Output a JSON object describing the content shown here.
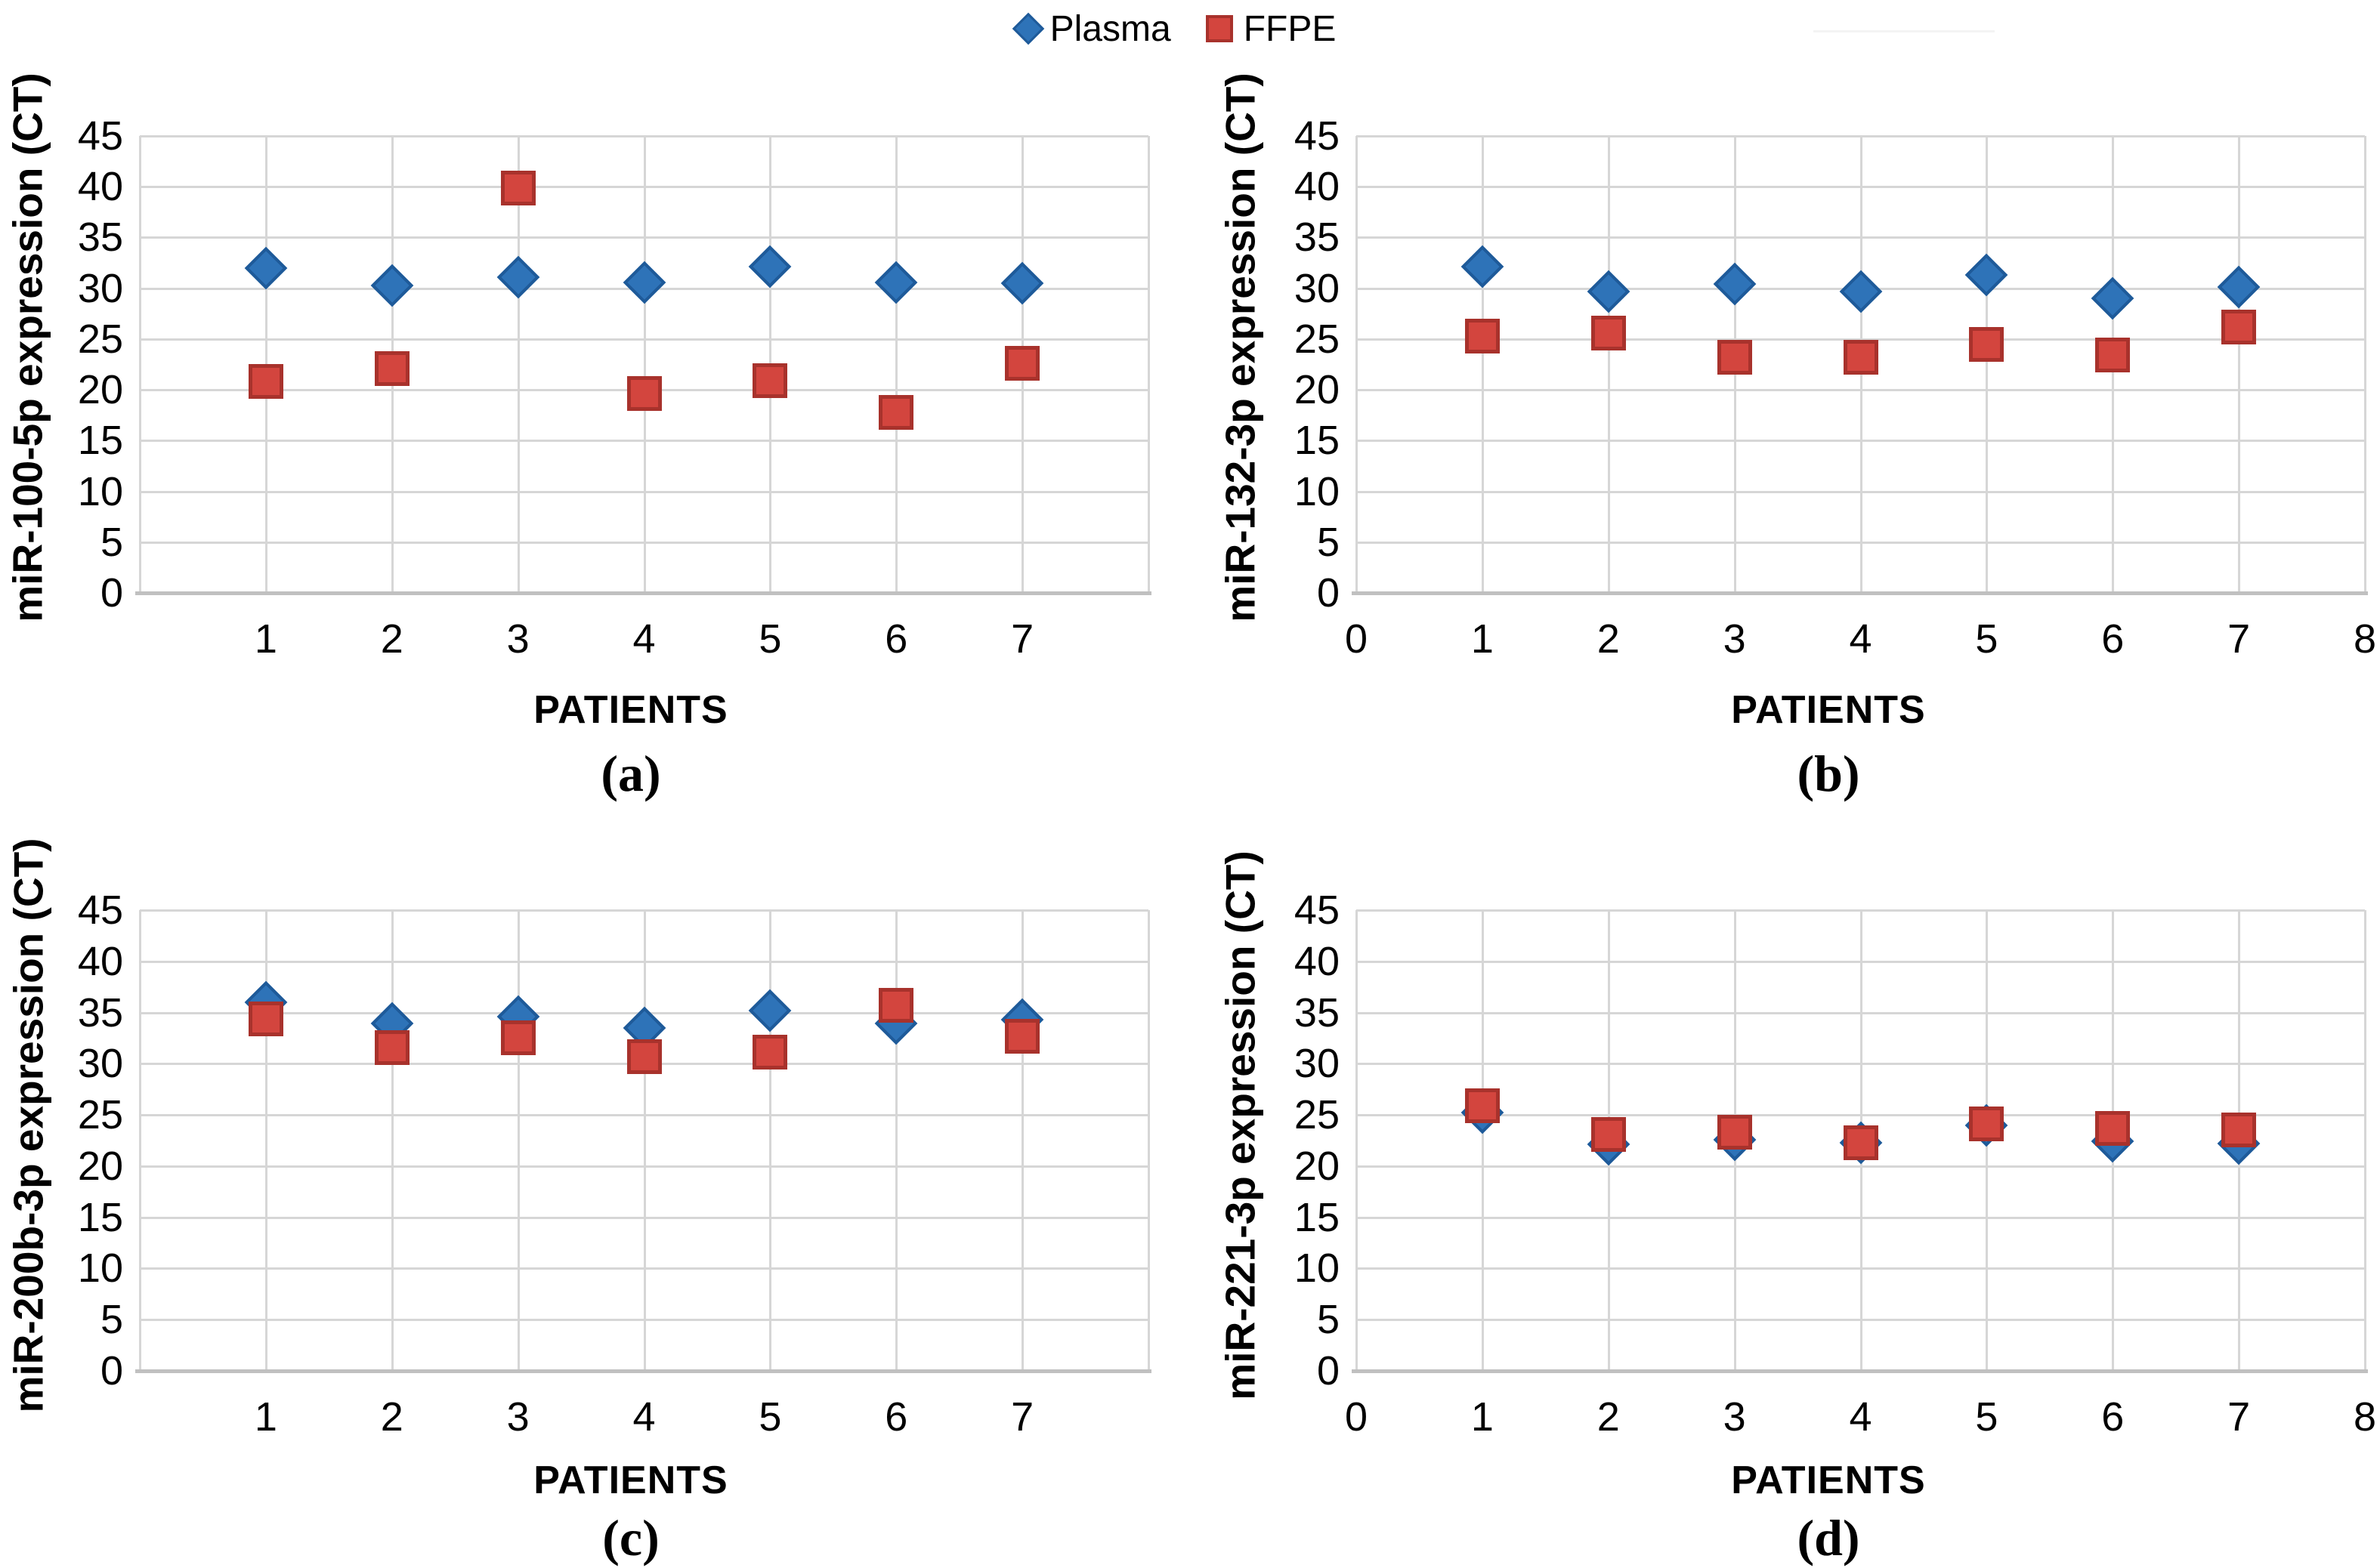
{
  "figure": {
    "background": "#ffffff",
    "legend": {
      "items": [
        {
          "label": "Plasma",
          "marker": "diamond-icon",
          "fill": "#2E73B8",
          "border": "#1E5A99"
        },
        {
          "label": "FFPE",
          "marker": "square-icon",
          "fill": "#D3453E",
          "border": "#A8322C"
        }
      ]
    },
    "axis_style": {
      "gridline_color": "#D6D6D6",
      "axis_line_color": "#C0C0C0",
      "text_color": "#000000"
    }
  },
  "chart_data": [
    {
      "type": "scatter",
      "panel_id": "a",
      "caption": "(a)",
      "ylabel": "miR-100-5p expression (CT)",
      "xlabel": "PATIENTS",
      "ylim": [
        0,
        45
      ],
      "xlim": [
        0,
        8
      ],
      "grid": true,
      "legend_position": "top-center-shared",
      "y_tick_labels": [
        "45",
        "40",
        "35",
        "30",
        "25",
        "20",
        "15",
        "10",
        "5",
        "0"
      ],
      "x_tick_positions": [
        1,
        2,
        3,
        4,
        5,
        6,
        7
      ],
      "x_tick_labels": [
        "1",
        "2",
        "3",
        "4",
        "5",
        "6",
        "7"
      ],
      "x": [
        1,
        2,
        3,
        4,
        5,
        6,
        7
      ],
      "series": [
        {
          "name": "Plasma",
          "marker": "diamond",
          "fill": "#2E73B8",
          "border": "#1E5A99",
          "values": [
            32.0,
            30.3,
            31.1,
            30.6,
            32.1,
            30.6,
            30.5
          ]
        },
        {
          "name": "FFPE",
          "marker": "square",
          "fill": "#D3453E",
          "border": "#A8322C",
          "values": [
            20.8,
            22.1,
            39.9,
            19.6,
            20.9,
            17.8,
            22.6
          ]
        }
      ]
    },
    {
      "type": "scatter",
      "panel_id": "b",
      "caption": "(b)",
      "ylabel": "miR-132-3p expression (CT)",
      "xlabel": "PATIENTS",
      "ylim": [
        0,
        45
      ],
      "xlim": [
        0,
        8
      ],
      "grid": true,
      "legend_position": "top-center-shared",
      "y_tick_labels": [
        "45",
        "40",
        "35",
        "30",
        "25",
        "20",
        "15",
        "10",
        "5",
        "0"
      ],
      "x_tick_positions": [
        0,
        1,
        2,
        3,
        4,
        5,
        6,
        7,
        8
      ],
      "x_tick_labels": [
        "0",
        "1",
        "2",
        "3",
        "4",
        "5",
        "6",
        "7",
        "8"
      ],
      "x": [
        1,
        2,
        3,
        4,
        5,
        6,
        7
      ],
      "series": [
        {
          "name": "Plasma",
          "marker": "diamond",
          "fill": "#2E73B8",
          "border": "#1E5A99",
          "values": [
            32.1,
            29.7,
            30.4,
            29.7,
            31.3,
            29.0,
            30.1
          ]
        },
        {
          "name": "FFPE",
          "marker": "square",
          "fill": "#D3453E",
          "border": "#A8322C",
          "values": [
            25.3,
            25.6,
            23.2,
            23.2,
            24.5,
            23.4,
            26.2
          ]
        }
      ]
    },
    {
      "type": "scatter",
      "panel_id": "c",
      "caption": "(c)",
      "ylabel": "miR-200b-3p expression (CT)",
      "xlabel": "PATIENTS",
      "ylim": [
        0,
        45
      ],
      "xlim": [
        0,
        8
      ],
      "grid": true,
      "legend_position": "top-center-shared",
      "y_tick_labels": [
        "45",
        "40",
        "35",
        "30",
        "25",
        "20",
        "15",
        "10",
        "5",
        "0"
      ],
      "x_tick_positions": [
        1,
        2,
        3,
        4,
        5,
        6,
        7
      ],
      "x_tick_labels": [
        "1",
        "2",
        "3",
        "4",
        "5",
        "6",
        "7"
      ],
      "x": [
        1,
        2,
        3,
        4,
        5,
        6,
        7
      ],
      "series": [
        {
          "name": "Plasma",
          "marker": "diamond",
          "fill": "#2E73B8",
          "border": "#1E5A99",
          "values": [
            36.0,
            33.9,
            34.6,
            33.5,
            35.2,
            33.9,
            34.3
          ]
        },
        {
          "name": "FFPE",
          "marker": "square",
          "fill": "#D3453E",
          "border": "#A8322C",
          "values": [
            34.4,
            31.6,
            32.5,
            30.7,
            31.1,
            35.7,
            32.7
          ]
        }
      ]
    },
    {
      "type": "scatter",
      "panel_id": "d",
      "caption": "(d)",
      "ylabel": "miR-221-3p expression (CT)",
      "xlabel": "PATIENTS",
      "ylim": [
        0,
        45
      ],
      "xlim": [
        0,
        8
      ],
      "grid": true,
      "legend_position": "top-center-shared",
      "y_tick_labels": [
        "45",
        "40",
        "35",
        "30",
        "25",
        "20",
        "15",
        "10",
        "5",
        "0"
      ],
      "x_tick_positions": [
        0,
        1,
        2,
        3,
        4,
        5,
        6,
        7,
        8
      ],
      "x_tick_labels": [
        "0",
        "1",
        "2",
        "3",
        "4",
        "5",
        "6",
        "7",
        "8"
      ],
      "x": [
        1,
        2,
        3,
        4,
        5,
        6,
        7
      ],
      "series": [
        {
          "name": "Plasma",
          "marker": "diamond",
          "fill": "#2E73B8",
          "border": "#1E5A99",
          "values": [
            25.2,
            22.1,
            22.6,
            22.3,
            24.0,
            22.4,
            22.2
          ]
        },
        {
          "name": "FFPE",
          "marker": "square",
          "fill": "#D3453E",
          "border": "#A8322C",
          "values": [
            25.9,
            23.1,
            23.3,
            22.3,
            24.1,
            23.7,
            23.5
          ]
        }
      ]
    }
  ]
}
